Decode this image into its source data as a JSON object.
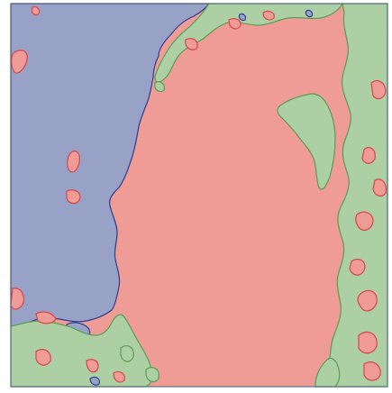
{
  "colors": {
    "background": "#ffffff",
    "frame": "#4a5e7a",
    "blue_region": "#98a2c6",
    "blue_edge": "#2d3f8f",
    "red_region": "#ee9c95",
    "red_edge": "#d8454a",
    "green_region": "#acd0a3",
    "green_edge": "#5a9c55"
  },
  "regions": [
    {
      "name": "blue-region",
      "class": "blue"
    },
    {
      "name": "red-region",
      "class": "red"
    },
    {
      "name": "green-region",
      "class": "green"
    }
  ]
}
